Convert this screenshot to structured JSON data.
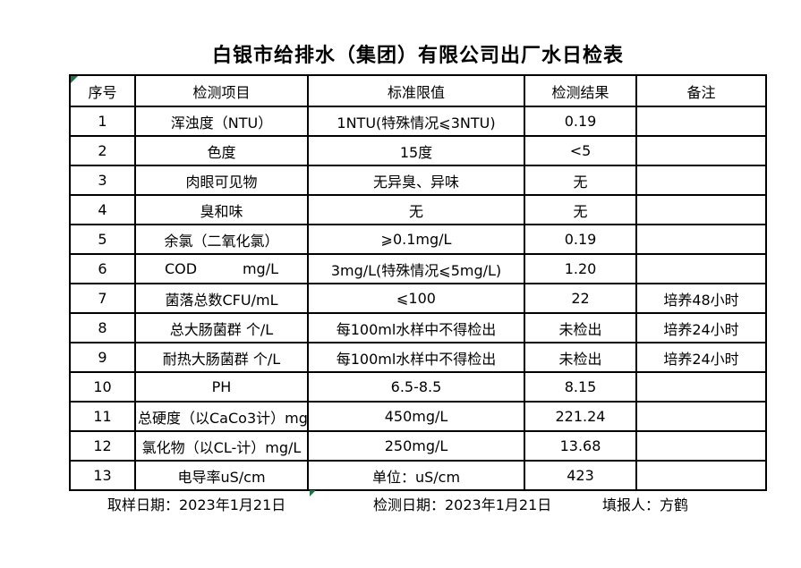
{
  "page": {
    "title": "白银市给排水（集团）有限公司出厂水日检表"
  },
  "table": {
    "headers": [
      "序号",
      "检测项目",
      "标准限值",
      "检测结果",
      "备注"
    ],
    "rows": [
      [
        "1",
        "浑浊度（NTU）",
        "1NTU(特殊情况⩽3NTU)",
        "0.19",
        ""
      ],
      [
        "2",
        "色度",
        "15度",
        "<5",
        ""
      ],
      [
        "3",
        "肉眼可见物",
        "无异臭、异味",
        "无",
        ""
      ],
      [
        "4",
        "臭和味",
        "无",
        "无",
        ""
      ],
      [
        "5",
        "余氯（二氧化氯）",
        "⩾0.1mg/L",
        "0.19",
        ""
      ],
      [
        "6",
        "COD          mg/L",
        "3mg/L(特殊情况⩽5mg/L)",
        "1.20",
        ""
      ],
      [
        "7",
        "菌落总数CFU/mL",
        "⩽100",
        "22",
        "培养48小时"
      ],
      [
        "8",
        "总大肠菌群 个/L",
        "每100ml水样中不得检出",
        "未检出",
        "培养24小时"
      ],
      [
        "9",
        "耐热大肠菌群 个/L",
        "每100ml水样中不得检出",
        "未检出",
        "培养24小时"
      ],
      [
        "10",
        "PH",
        "6.5-8.5",
        "8.15",
        ""
      ],
      [
        "11",
        "总硬度（以CaCo3计）mg/L",
        "450mg/L",
        "221.24",
        ""
      ],
      [
        "12",
        "氯化物（以CL-计）mg/L",
        "250mg/L",
        "13.68",
        ""
      ],
      [
        "13",
        "电导率uS/cm",
        "单位：uS/cm",
        "423",
        ""
      ]
    ]
  },
  "footer": {
    "sampling_date": "取样日期：2023年1月21日",
    "test_date": "检测日期：2023年1月21日",
    "reporter": "填报人：方鹤"
  },
  "colors": {
    "border": "#000000",
    "background": "#ffffff",
    "marker_green": "#217346"
  }
}
